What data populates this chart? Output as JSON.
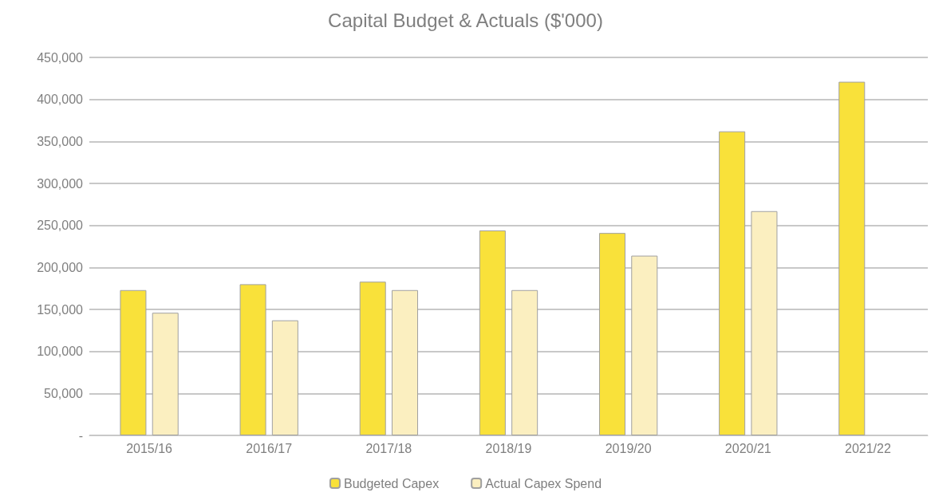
{
  "chart_data": {
    "type": "bar",
    "title": "Capital Budget & Actuals ($'000)",
    "categories": [
      "2015/16",
      "2016/17",
      "2017/18",
      "2018/19",
      "2019/20",
      "2020/21",
      "2021/22"
    ],
    "series": [
      {
        "name": "Budgeted Capex",
        "color": "#f9e13a",
        "values": [
          173000,
          180000,
          183000,
          244000,
          241000,
          362000,
          421000
        ]
      },
      {
        "name": "Actual Capex Spend",
        "color": "#fbefc0",
        "values": [
          146000,
          137000,
          173000,
          173000,
          214000,
          267000,
          null
        ]
      }
    ],
    "ylim": [
      0,
      450000
    ],
    "yticks": [
      {
        "value": 0,
        "label": "-"
      },
      {
        "value": 50000,
        "label": "50,000"
      },
      {
        "value": 100000,
        "label": "100,000"
      },
      {
        "value": 150000,
        "label": "150,000"
      },
      {
        "value": 200000,
        "label": "200,000"
      },
      {
        "value": 250000,
        "label": "250,000"
      },
      {
        "value": 300000,
        "label": "300,000"
      },
      {
        "value": 350000,
        "label": "350,000"
      },
      {
        "value": 400000,
        "label": "400,000"
      },
      {
        "value": 450000,
        "label": "450,000"
      }
    ],
    "grid": "y",
    "legend": "bottom"
  }
}
